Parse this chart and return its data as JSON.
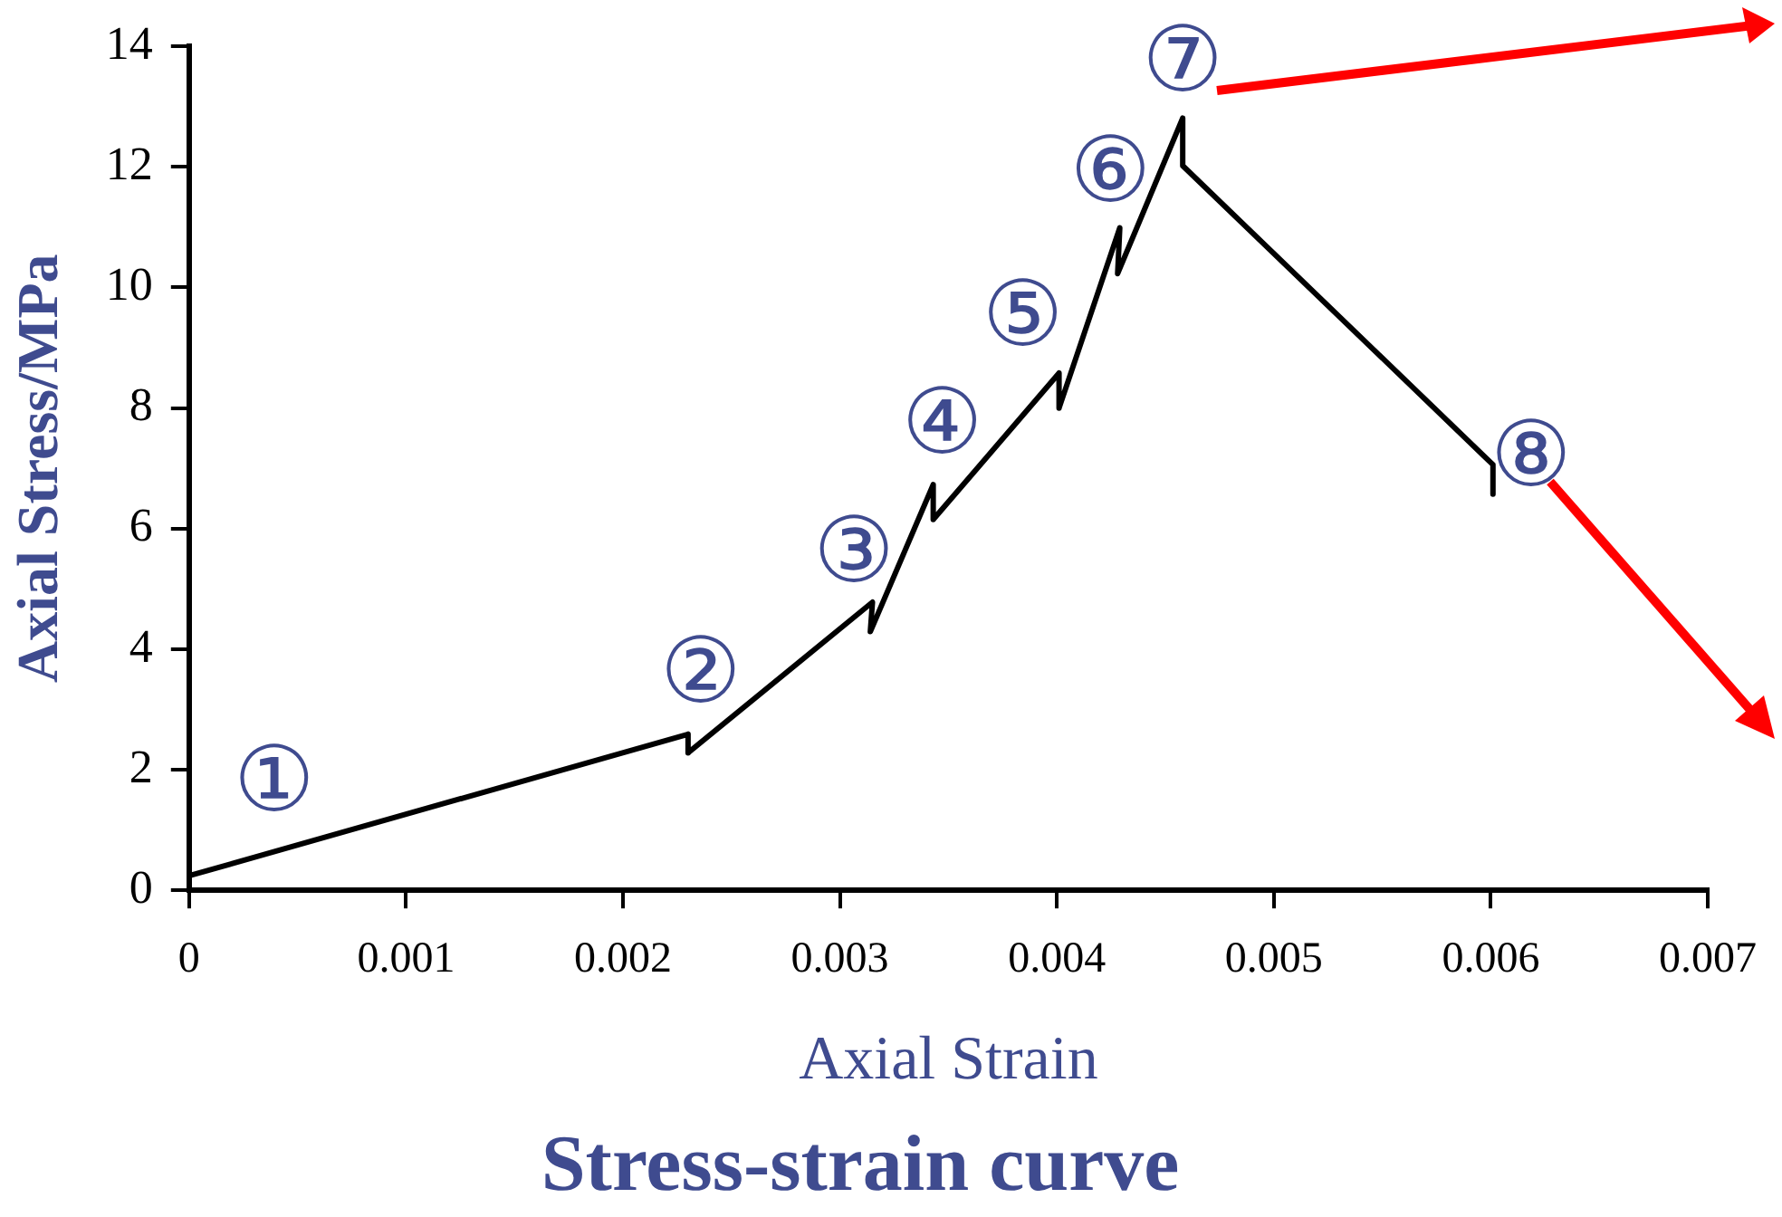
{
  "chart_data": {
    "type": "line",
    "title": "Stress-strain curve",
    "xlabel": "Axial Strain",
    "ylabel": "Axial Stress/MPa",
    "x": [
      0,
      0.0023,
      0.0023,
      0.00315,
      0.00314,
      0.00343,
      0.00343,
      0.00401,
      0.00401,
      0.00429,
      0.00428,
      0.00458,
      0.00458,
      0.00601,
      0.00601
    ],
    "series": [
      {
        "color": "#000000",
        "values": [
          0.24,
          2.59,
          2.28,
          4.78,
          4.29,
          6.73,
          6.15,
          8.58,
          8.0,
          10.99,
          10.23,
          12.81,
          12.02,
          7.06,
          6.57
        ]
      }
    ],
    "xlim": [
      0,
      0.007
    ],
    "xticks": [
      0,
      0.001,
      0.002,
      0.003,
      0.004,
      0.005,
      0.006,
      0.007
    ],
    "ylim": [
      0,
      14
    ],
    "yticks": [
      0,
      2,
      4,
      6,
      8,
      10,
      12,
      14
    ],
    "grid": false,
    "legend": false,
    "marker": "none",
    "line_style": "solid",
    "annotations": [
      {
        "text": "①",
        "x": 0,
        "y": 0.24
      },
      {
        "text": "②",
        "x": 0.0023,
        "y": 2.28
      },
      {
        "text": "③",
        "x": 0.00314,
        "y": 4.29
      },
      {
        "text": "④",
        "x": 0.00343,
        "y": 6.15
      },
      {
        "text": "⑤",
        "x": 0.00401,
        "y": 8.0
      },
      {
        "text": "⑥",
        "x": 0.00428,
        "y": 10.23
      },
      {
        "text": "⑦",
        "x": 0.00458,
        "y": 12.81
      },
      {
        "text": "⑧",
        "x": 0.00601,
        "y": 6.57
      }
    ]
  }
}
